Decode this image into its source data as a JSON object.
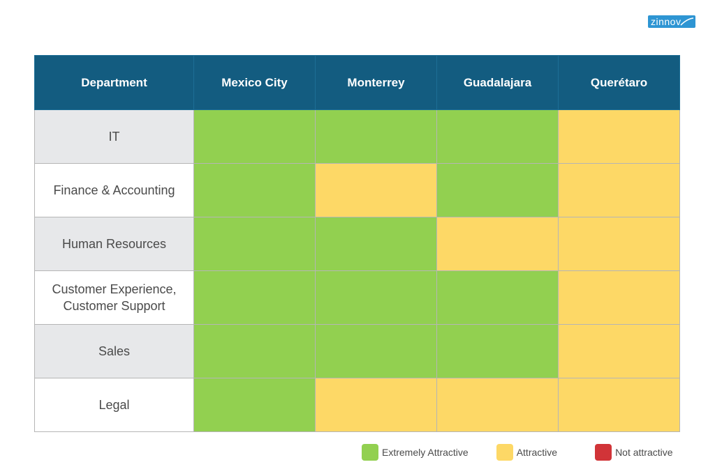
{
  "brand": {
    "logo_text": "zinnov"
  },
  "colors": {
    "header": "#135c80",
    "extremely_attractive": "#92d050",
    "attractive": "#fdd866",
    "not_attractive": "#d13438"
  },
  "chart_data": {
    "type": "heatmap",
    "title": "",
    "row_header": "Department",
    "columns": [
      "Mexico City",
      "Monterrey",
      "Guadalajara",
      "Querétaro"
    ],
    "rows": [
      {
        "label": "IT",
        "values": [
          "Extremely Attractive",
          "Extremely Attractive",
          "Extremely Attractive",
          "Attractive"
        ]
      },
      {
        "label": "Finance & Accounting",
        "values": [
          "Extremely Attractive",
          "Attractive",
          "Extremely Attractive",
          "Attractive"
        ]
      },
      {
        "label": "Human Resources",
        "values": [
          "Extremely Attractive",
          "Extremely Attractive",
          "Attractive",
          "Attractive"
        ]
      },
      {
        "label": "Customer Experience, Customer Support",
        "values": [
          "Extremely Attractive",
          "Extremely Attractive",
          "Extremely Attractive",
          "Attractive"
        ]
      },
      {
        "label": "Sales",
        "values": [
          "Extremely Attractive",
          "Extremely Attractive",
          "Extremely Attractive",
          "Attractive"
        ]
      },
      {
        "label": "Legal",
        "values": [
          "Extremely Attractive",
          "Attractive",
          "Attractive",
          "Attractive"
        ]
      }
    ],
    "legend": [
      {
        "label": "Extremely Attractive",
        "color": "#92d050"
      },
      {
        "label": "Attractive",
        "color": "#fdd866"
      },
      {
        "label": "Not attractive",
        "color": "#d13438"
      }
    ],
    "legend_position": "bottom-right"
  }
}
